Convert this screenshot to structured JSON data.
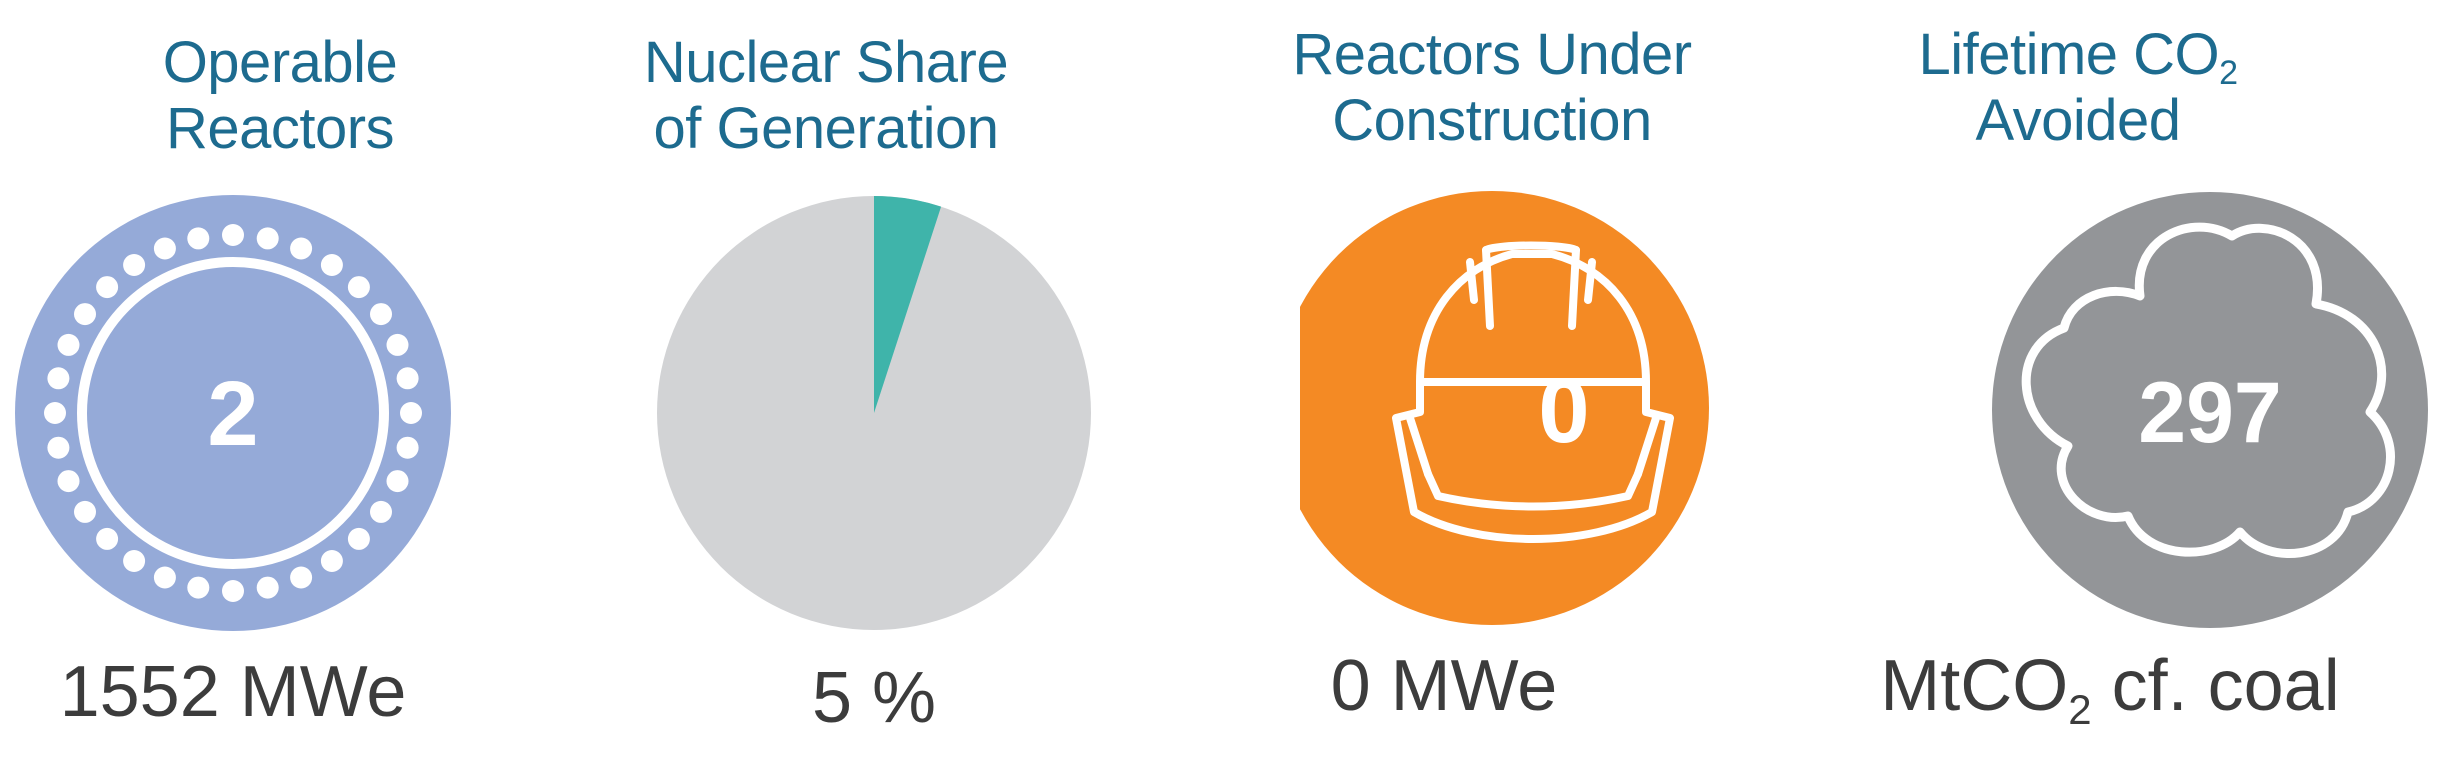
{
  "panels": {
    "operable": {
      "title_line1": "Operable",
      "title_line2": "Reactors",
      "value": "2",
      "footer": "1552 MWe",
      "color": "#95aad8"
    },
    "share": {
      "title_line1": "Nuclear Share",
      "title_line2": "of Generation",
      "footer": "5 %",
      "slice_percent": 5,
      "slice_color": "#3fb4aa",
      "rest_color": "#d2d3d5"
    },
    "construction": {
      "title_line1": "Reactors Under",
      "title_line2": "Construction",
      "value": "0",
      "footer": "0 MWe",
      "color": "#f48a24",
      "icon": "hard-hat-icon"
    },
    "co2": {
      "title_line1_prefix": "Lifetime CO",
      "title_line1_sub": "2",
      "title_line2": "Avoided",
      "value": "297",
      "footer_prefix": "MtCO",
      "footer_sub": "2",
      "footer_suffix": " cf. coal",
      "color": "#939598",
      "icon": "cloud-icon"
    }
  }
}
